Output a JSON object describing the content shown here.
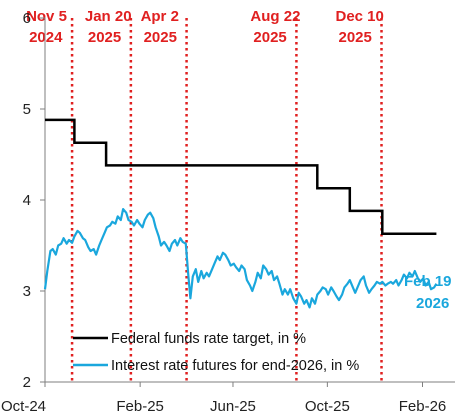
{
  "chart_data": {
    "type": "line",
    "title": "",
    "xlabel": "",
    "ylabel": "",
    "ylim": [
      2,
      6
    ],
    "yticks": [
      "2",
      "3",
      "4",
      "5",
      "6"
    ],
    "xlim": [
      "2024-10-01",
      "2026-03-15"
    ],
    "xticks": [
      {
        "date": "2024-10-01",
        "label": "Oct-24"
      },
      {
        "date": "2025-02-01",
        "label": "Feb-25"
      },
      {
        "date": "2025-06-01",
        "label": "Jun-25"
      },
      {
        "date": "2025-10-01",
        "label": "Oct-25"
      },
      {
        "date": "2026-02-01",
        "label": "Feb-26"
      }
    ],
    "grid": false,
    "legend_position": "bottom-left",
    "colors": {
      "fed_funds": "#000000",
      "futures": "#1aa7dd",
      "event_lines": "#e02020",
      "annotation": "#1aa7dd"
    },
    "event_lines": [
      {
        "date": "2024-11-05",
        "line1": "Nov 5",
        "line2": "2024"
      },
      {
        "date": "2025-01-20",
        "line1": "Jan 20",
        "line2": "2025"
      },
      {
        "date": "2025-04-02",
        "line1": "Apr 2",
        "line2": "2025"
      },
      {
        "date": "2025-08-22",
        "line1": "Aug 22",
        "line2": "2025"
      },
      {
        "date": "2025-12-10",
        "line1": "Dec 10",
        "line2": "2025"
      }
    ],
    "annotation": {
      "line1": "Feb 19",
      "line2": "2026",
      "date": "2026-02-19",
      "value": 3.08
    },
    "series": [
      {
        "name": "Federal funds rate target, in %",
        "style": "step",
        "points": [
          [
            "2024-10-01",
            4.88
          ],
          [
            "2024-11-08",
            4.63
          ],
          [
            "2024-12-19",
            4.38
          ],
          [
            "2025-09-18",
            4.13
          ],
          [
            "2025-10-30",
            3.88
          ],
          [
            "2025-12-11",
            3.63
          ],
          [
            "2026-02-19",
            3.63
          ]
        ]
      },
      {
        "name": "Interest rate futures for end-2026, in %",
        "style": "line",
        "points": [
          [
            "2024-10-01",
            3.02
          ],
          [
            "2024-10-04",
            3.22
          ],
          [
            "2024-10-08",
            3.44
          ],
          [
            "2024-10-11",
            3.46
          ],
          [
            "2024-10-15",
            3.4
          ],
          [
            "2024-10-18",
            3.5
          ],
          [
            "2024-10-22",
            3.52
          ],
          [
            "2024-10-25",
            3.58
          ],
          [
            "2024-10-29",
            3.52
          ],
          [
            "2024-11-01",
            3.56
          ],
          [
            "2024-11-05",
            3.53
          ],
          [
            "2024-11-08",
            3.6
          ],
          [
            "2024-11-12",
            3.66
          ],
          [
            "2024-11-15",
            3.64
          ],
          [
            "2024-11-19",
            3.58
          ],
          [
            "2024-11-22",
            3.56
          ],
          [
            "2024-11-26",
            3.48
          ],
          [
            "2024-11-29",
            3.44
          ],
          [
            "2024-12-03",
            3.46
          ],
          [
            "2024-12-06",
            3.4
          ],
          [
            "2024-12-10",
            3.5
          ],
          [
            "2024-12-13",
            3.56
          ],
          [
            "2024-12-17",
            3.64
          ],
          [
            "2024-12-20",
            3.7
          ],
          [
            "2024-12-24",
            3.72
          ],
          [
            "2024-12-27",
            3.76
          ],
          [
            "2024-12-31",
            3.74
          ],
          [
            "2025-01-03",
            3.82
          ],
          [
            "2025-01-07",
            3.78
          ],
          [
            "2025-01-10",
            3.9
          ],
          [
            "2025-01-14",
            3.86
          ],
          [
            "2025-01-17",
            3.78
          ],
          [
            "2025-01-21",
            3.76
          ],
          [
            "2025-01-24",
            3.72
          ],
          [
            "2025-01-28",
            3.78
          ],
          [
            "2025-01-31",
            3.74
          ],
          [
            "2025-02-04",
            3.7
          ],
          [
            "2025-02-07",
            3.78
          ],
          [
            "2025-02-11",
            3.84
          ],
          [
            "2025-02-14",
            3.86
          ],
          [
            "2025-02-18",
            3.8
          ],
          [
            "2025-02-21",
            3.7
          ],
          [
            "2025-02-25",
            3.6
          ],
          [
            "2025-02-28",
            3.5
          ],
          [
            "2025-03-04",
            3.54
          ],
          [
            "2025-03-07",
            3.5
          ],
          [
            "2025-03-11",
            3.44
          ],
          [
            "2025-03-14",
            3.52
          ],
          [
            "2025-03-18",
            3.56
          ],
          [
            "2025-03-21",
            3.5
          ],
          [
            "2025-03-25",
            3.58
          ],
          [
            "2025-03-28",
            3.54
          ],
          [
            "2025-04-01",
            3.52
          ],
          [
            "2025-04-04",
            3.2
          ],
          [
            "2025-04-07",
            2.92
          ],
          [
            "2025-04-10",
            3.16
          ],
          [
            "2025-04-14",
            3.24
          ],
          [
            "2025-04-17",
            3.1
          ],
          [
            "2025-04-21",
            3.22
          ],
          [
            "2025-04-24",
            3.14
          ],
          [
            "2025-04-28",
            3.2
          ],
          [
            "2025-05-01",
            3.16
          ],
          [
            "2025-05-05",
            3.24
          ],
          [
            "2025-05-08",
            3.3
          ],
          [
            "2025-05-12",
            3.38
          ],
          [
            "2025-05-15",
            3.34
          ],
          [
            "2025-05-19",
            3.42
          ],
          [
            "2025-05-22",
            3.4
          ],
          [
            "2025-05-26",
            3.34
          ],
          [
            "2025-05-29",
            3.28
          ],
          [
            "2025-06-02",
            3.3
          ],
          [
            "2025-06-05",
            3.26
          ],
          [
            "2025-06-09",
            3.22
          ],
          [
            "2025-06-12",
            3.28
          ],
          [
            "2025-06-16",
            3.24
          ],
          [
            "2025-06-19",
            3.12
          ],
          [
            "2025-06-23",
            3.06
          ],
          [
            "2025-06-26",
            3.0
          ],
          [
            "2025-06-30",
            3.1
          ],
          [
            "2025-07-03",
            3.2
          ],
          [
            "2025-07-07",
            3.14
          ],
          [
            "2025-07-10",
            3.28
          ],
          [
            "2025-07-14",
            3.24
          ],
          [
            "2025-07-17",
            3.18
          ],
          [
            "2025-07-21",
            3.22
          ],
          [
            "2025-07-24",
            3.12
          ],
          [
            "2025-07-28",
            3.16
          ],
          [
            "2025-07-31",
            3.08
          ],
          [
            "2025-08-04",
            2.96
          ],
          [
            "2025-08-07",
            3.02
          ],
          [
            "2025-08-11",
            2.96
          ],
          [
            "2025-08-14",
            3.02
          ],
          [
            "2025-08-18",
            2.92
          ],
          [
            "2025-08-22",
            2.86
          ],
          [
            "2025-08-25",
            2.98
          ],
          [
            "2025-08-28",
            2.94
          ],
          [
            "2025-09-01",
            2.86
          ],
          [
            "2025-09-04",
            2.9
          ],
          [
            "2025-09-08",
            2.82
          ],
          [
            "2025-09-11",
            2.92
          ],
          [
            "2025-09-15",
            2.86
          ],
          [
            "2025-09-18",
            2.96
          ],
          [
            "2025-09-22",
            3.0
          ],
          [
            "2025-09-25",
            3.04
          ],
          [
            "2025-09-29",
            3.02
          ],
          [
            "2025-10-02",
            2.96
          ],
          [
            "2025-10-06",
            3.04
          ],
          [
            "2025-10-09",
            3.0
          ],
          [
            "2025-10-13",
            2.94
          ],
          [
            "2025-10-16",
            2.9
          ],
          [
            "2025-10-20",
            2.96
          ],
          [
            "2025-10-23",
            3.04
          ],
          [
            "2025-10-27",
            3.08
          ],
          [
            "2025-10-30",
            3.12
          ],
          [
            "2025-11-03",
            3.04
          ],
          [
            "2025-11-06",
            2.98
          ],
          [
            "2025-11-10",
            3.06
          ],
          [
            "2025-11-13",
            3.12
          ],
          [
            "2025-11-17",
            3.16
          ],
          [
            "2025-11-20",
            3.06
          ],
          [
            "2025-11-24",
            2.98
          ],
          [
            "2025-11-27",
            3.02
          ],
          [
            "2025-12-01",
            3.06
          ],
          [
            "2025-12-04",
            3.1
          ],
          [
            "2025-12-08",
            3.08
          ],
          [
            "2025-12-11",
            3.1
          ],
          [
            "2025-12-15",
            3.06
          ],
          [
            "2025-12-18",
            3.08
          ],
          [
            "2025-12-22",
            3.1
          ],
          [
            "2025-12-25",
            3.08
          ],
          [
            "2025-12-29",
            3.12
          ],
          [
            "2026-01-01",
            3.06
          ],
          [
            "2026-01-05",
            3.12
          ],
          [
            "2026-01-08",
            3.18
          ],
          [
            "2026-01-12",
            3.14
          ],
          [
            "2026-01-15",
            3.2
          ],
          [
            "2026-01-19",
            3.16
          ],
          [
            "2026-01-22",
            3.22
          ],
          [
            "2026-01-26",
            3.14
          ],
          [
            "2026-01-29",
            3.1
          ],
          [
            "2026-02-02",
            3.14
          ],
          [
            "2026-02-05",
            3.06
          ],
          [
            "2026-02-09",
            3.1
          ],
          [
            "2026-02-12",
            3.02
          ],
          [
            "2026-02-16",
            3.04
          ],
          [
            "2026-02-19",
            3.08
          ]
        ]
      }
    ]
  }
}
